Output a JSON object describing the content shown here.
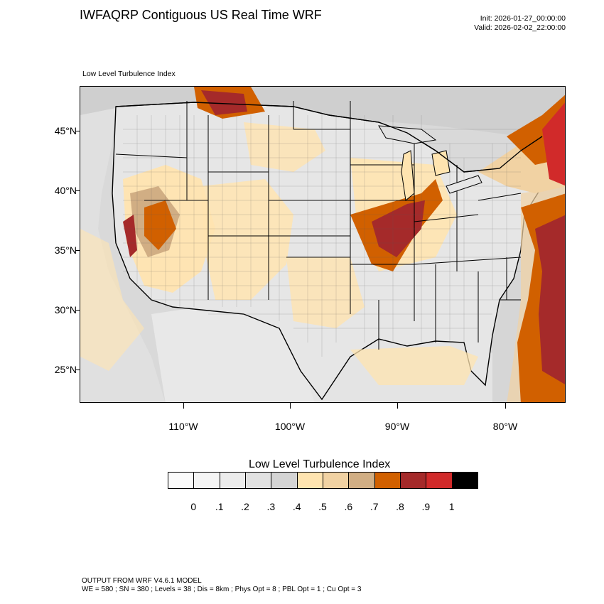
{
  "header": {
    "title": "IWFAQRP Contiguous US Real Time WRF",
    "init": "Init: 2026-01-27_00:00:00",
    "valid": "Valid: 2026-02-02_22:00:00"
  },
  "plot": {
    "label": "Low Level Turbulence Index",
    "lat_labels": [
      "45°N",
      "40°N",
      "35°N",
      "30°N",
      "25°N"
    ],
    "lon_labels": [
      "110°W",
      "100°W",
      "90°W",
      "80°W"
    ]
  },
  "colorbar": {
    "title": "Low Level Turbulence Index",
    "colors": [
      "#fbfbfb",
      "#f5f5f5",
      "#ececec",
      "#e1e1e1",
      "#d4d4d4",
      "#ffe4b0",
      "#f1d2a3",
      "#d1ae84",
      "#d16000",
      "#a52a2a",
      "#d12a2a",
      "#000000"
    ],
    "labels": [
      "0",
      ".1",
      ".2",
      ".3",
      ".4",
      ".5",
      ".6",
      ".7",
      ".8",
      ".9",
      "1"
    ]
  },
  "footer": {
    "line1": "OUTPUT FROM WRF V4.6.1 MODEL",
    "line2": "WE = 580 ; SN = 380 ; Levels = 38 ; Dis = 8km ; Phys Opt = 8 ; PBL Opt = 1 ; Cu Opt = 3"
  }
}
